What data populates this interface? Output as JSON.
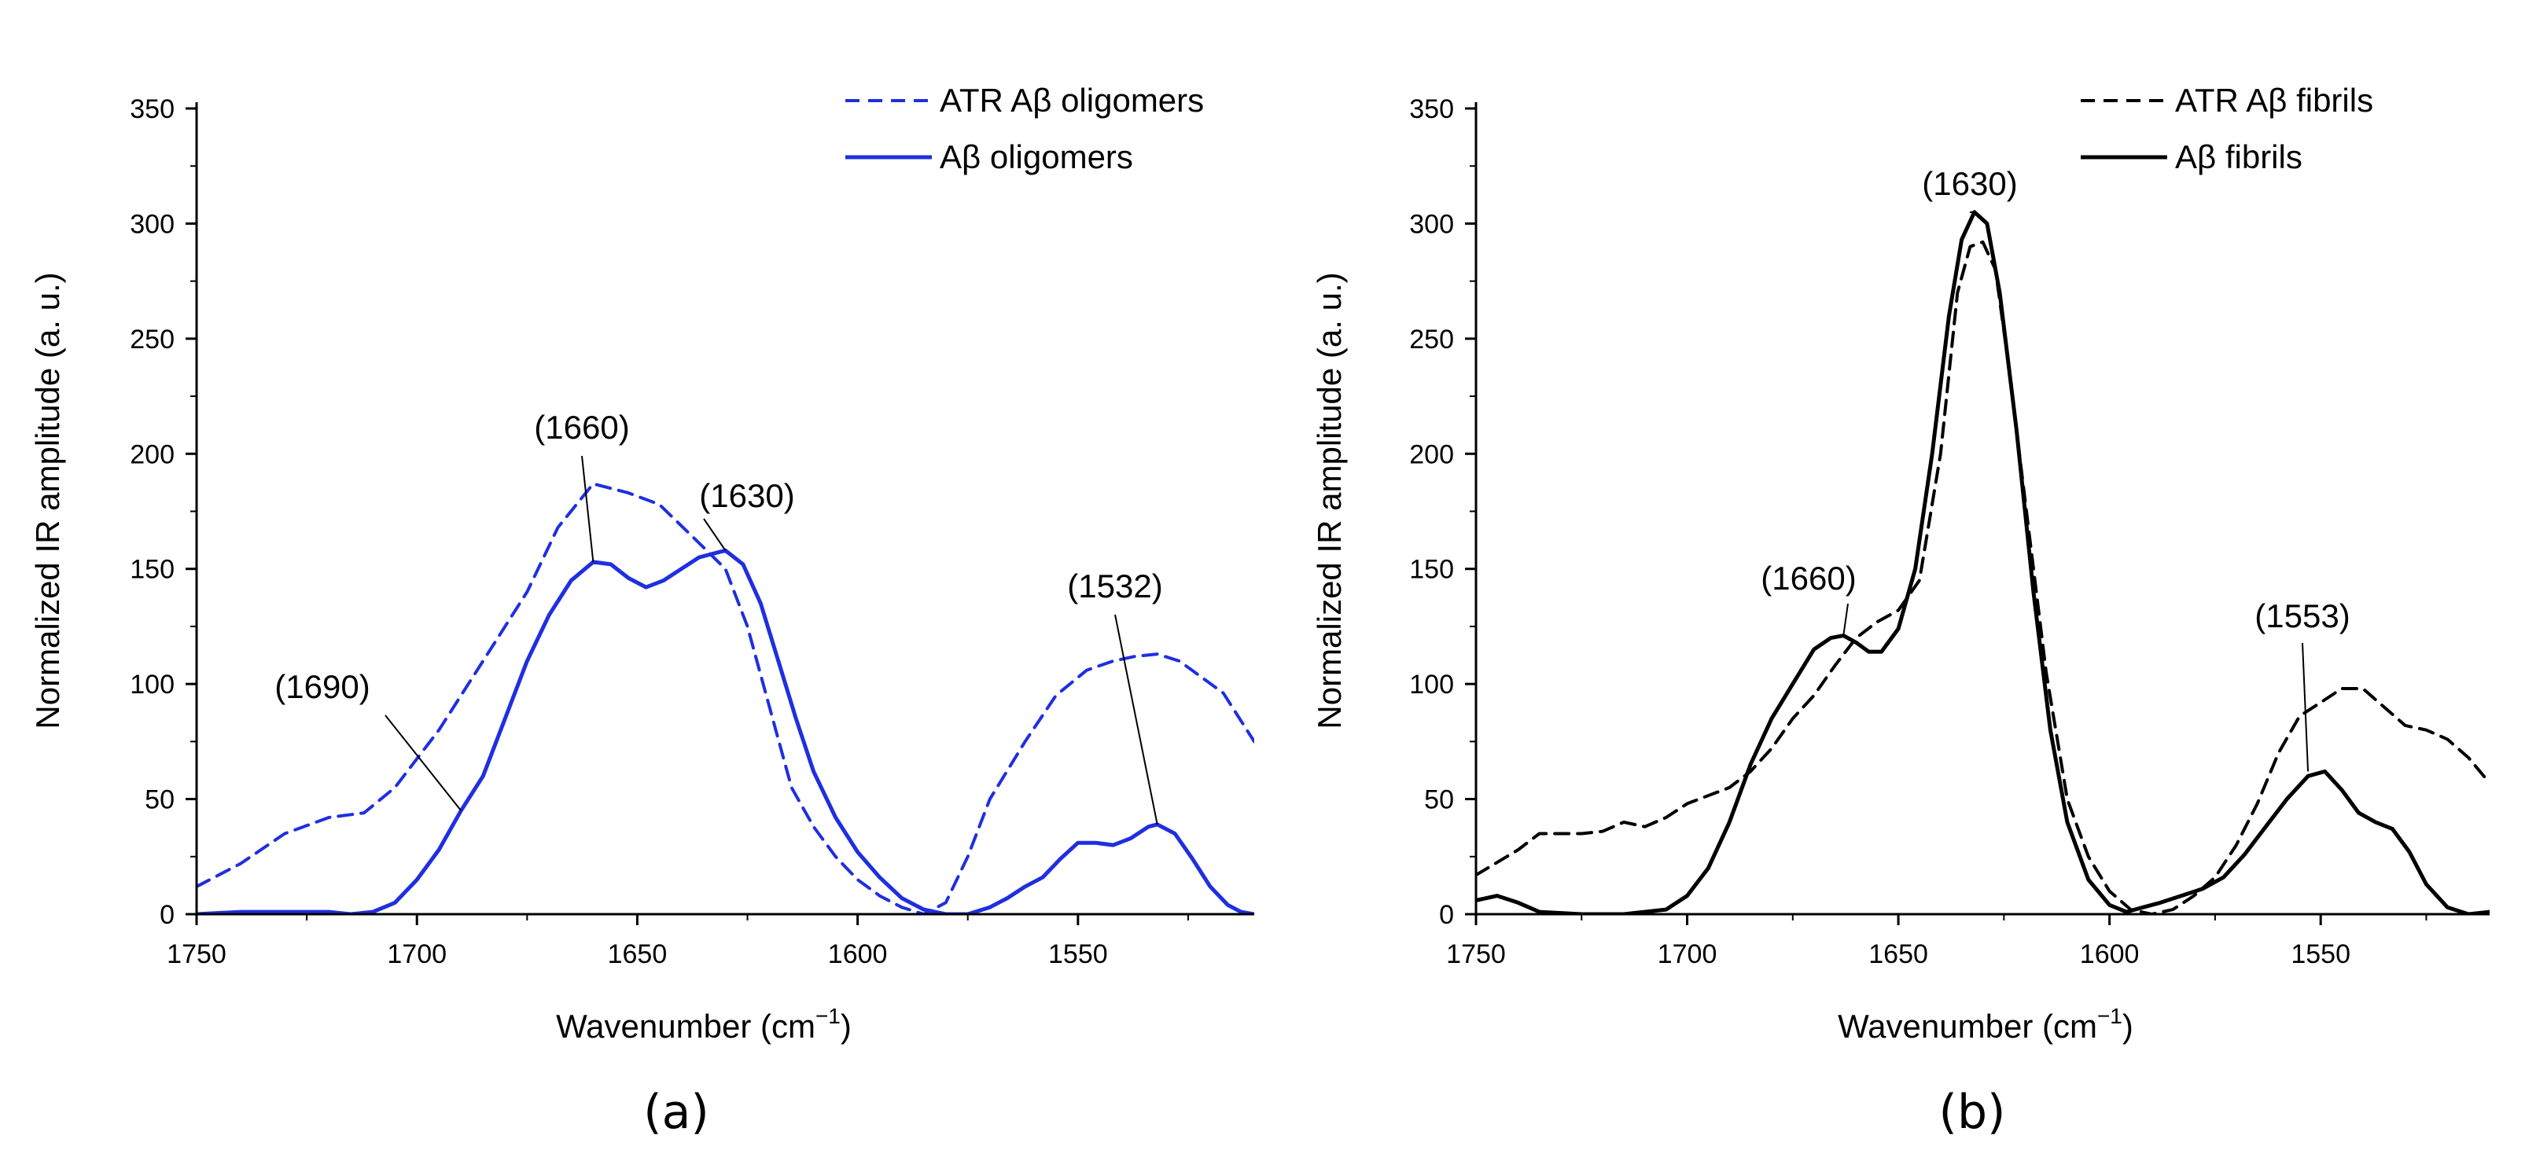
{
  "chart_data": [
    {
      "type": "line",
      "panel_label": "(a)",
      "xlabel": "Wavenumber (cm",
      "xlabel_sup": "−1",
      "xlabel_end": ")",
      "ylabel": "Normalized IR amplitude (a. u.)",
      "xlim": [
        1750,
        1510
      ],
      "ylim": [
        0,
        350
      ],
      "xticks": [
        1750,
        1700,
        1650,
        1600,
        1550
      ],
      "yticks": [
        0,
        50,
        100,
        150,
        200,
        250,
        300,
        350
      ],
      "color": "#1f2fe0",
      "legend_position": "top-right",
      "series": [
        {
          "name": "ATR Aβ oligomers",
          "style": "dashed",
          "x": [
            1750,
            1740,
            1730,
            1720,
            1712,
            1705,
            1695,
            1685,
            1675,
            1668,
            1660,
            1652,
            1645,
            1638,
            1630,
            1625,
            1620,
            1615,
            1610,
            1605,
            1600,
            1595,
            1590,
            1585,
            1580,
            1575,
            1570,
            1562,
            1555,
            1548,
            1542,
            1537,
            1532,
            1527,
            1522,
            1517,
            1510
          ],
          "y": [
            12,
            22,
            35,
            42,
            44,
            55,
            80,
            110,
            140,
            168,
            187,
            183,
            178,
            165,
            150,
            125,
            90,
            55,
            38,
            25,
            15,
            8,
            3,
            0,
            5,
            25,
            50,
            75,
            95,
            106,
            110,
            112,
            113,
            110,
            103,
            96,
            75
          ]
        },
        {
          "name": "Aβ oligomers",
          "style": "solid",
          "x": [
            1750,
            1740,
            1730,
            1720,
            1715,
            1710,
            1705,
            1700,
            1695,
            1690,
            1685,
            1680,
            1675,
            1670,
            1665,
            1660,
            1656,
            1652,
            1648,
            1644,
            1640,
            1636,
            1632,
            1630,
            1626,
            1622,
            1618,
            1614,
            1610,
            1605,
            1600,
            1595,
            1590,
            1585,
            1580,
            1575,
            1570,
            1566,
            1562,
            1558,
            1554,
            1550,
            1546,
            1542,
            1538,
            1534,
            1532,
            1528,
            1524,
            1520,
            1516,
            1513,
            1510
          ],
          "y": [
            0,
            1,
            1,
            1,
            0,
            1,
            5,
            15,
            28,
            45,
            60,
            85,
            110,
            130,
            145,
            153,
            152,
            146,
            142,
            145,
            150,
            155,
            157,
            158,
            152,
            135,
            110,
            85,
            62,
            42,
            27,
            16,
            7,
            2,
            0,
            0,
            3,
            7,
            12,
            16,
            24,
            31,
            31,
            30,
            33,
            38,
            39,
            35,
            24,
            12,
            4,
            1,
            0
          ]
        }
      ],
      "annotations": [
        {
          "text": "(1660)",
          "x": 1660,
          "y": 153
        },
        {
          "text": "(1630)",
          "x": 1630,
          "y": 158
        },
        {
          "text": "(1690)",
          "x": 1690,
          "y": 45
        },
        {
          "text": "(1532)",
          "x": 1532,
          "y": 39
        }
      ]
    },
    {
      "type": "line",
      "panel_label": "(b)",
      "xlabel": "Wavenumber (cm",
      "xlabel_sup": "−1",
      "xlabel_end": ")",
      "ylabel": "Normalized IR amplitude (a. u.)",
      "xlim": [
        1750,
        1510
      ],
      "ylim": [
        0,
        350
      ],
      "xticks": [
        1750,
        1700,
        1650,
        1600,
        1550
      ],
      "yticks": [
        0,
        50,
        100,
        150,
        200,
        250,
        300,
        350
      ],
      "color": "#000000",
      "legend_position": "top-right",
      "series": [
        {
          "name": "ATR Aβ fibrils",
          "style": "dashed",
          "x": [
            1750,
            1740,
            1735,
            1725,
            1720,
            1715,
            1710,
            1705,
            1700,
            1690,
            1685,
            1680,
            1675,
            1670,
            1665,
            1660,
            1655,
            1650,
            1645,
            1640,
            1636,
            1633,
            1630,
            1627,
            1624,
            1620,
            1615,
            1610,
            1605,
            1600,
            1595,
            1590,
            1585,
            1580,
            1575,
            1570,
            1565,
            1560,
            1555,
            1550,
            1545,
            1540,
            1535,
            1530,
            1525,
            1520,
            1515,
            1510
          ],
          "y": [
            17,
            28,
            35,
            35,
            36,
            40,
            38,
            42,
            48,
            55,
            62,
            72,
            85,
            95,
            108,
            120,
            127,
            132,
            145,
            200,
            270,
            290,
            292,
            280,
            240,
            180,
            105,
            50,
            25,
            10,
            2,
            0,
            2,
            8,
            16,
            30,
            48,
            70,
            86,
            92,
            98,
            98,
            90,
            82,
            80,
            76,
            68,
            57
          ]
        },
        {
          "name": "Aβ fibrils",
          "style": "solid",
          "x": [
            1750,
            1745,
            1740,
            1735,
            1725,
            1715,
            1705,
            1700,
            1695,
            1690,
            1685,
            1680,
            1675,
            1670,
            1666,
            1663,
            1660,
            1657,
            1654,
            1650,
            1646,
            1642,
            1638,
            1635,
            1632,
            1629,
            1626,
            1622,
            1618,
            1614,
            1610,
            1605,
            1600,
            1596,
            1592,
            1588,
            1583,
            1578,
            1573,
            1568,
            1563,
            1558,
            1553,
            1549,
            1545,
            1541,
            1537,
            1533,
            1529,
            1525,
            1520,
            1515,
            1510
          ],
          "y": [
            6,
            8,
            5,
            1,
            0,
            0,
            2,
            8,
            20,
            40,
            65,
            85,
            100,
            115,
            120,
            121,
            118,
            114,
            114,
            124,
            150,
            200,
            260,
            293,
            305,
            300,
            270,
            210,
            140,
            80,
            40,
            15,
            4,
            1,
            3,
            5,
            8,
            11,
            16,
            26,
            38,
            50,
            60,
            62,
            54,
            44,
            40,
            37,
            27,
            13,
            3,
            0,
            1
          ]
        }
      ],
      "annotations": [
        {
          "text": "(1630)",
          "x": 1632,
          "y": 305
        },
        {
          "text": "(1660)",
          "x": 1663,
          "y": 121
        },
        {
          "text": "(1553)",
          "x": 1553,
          "y": 62
        }
      ]
    }
  ]
}
